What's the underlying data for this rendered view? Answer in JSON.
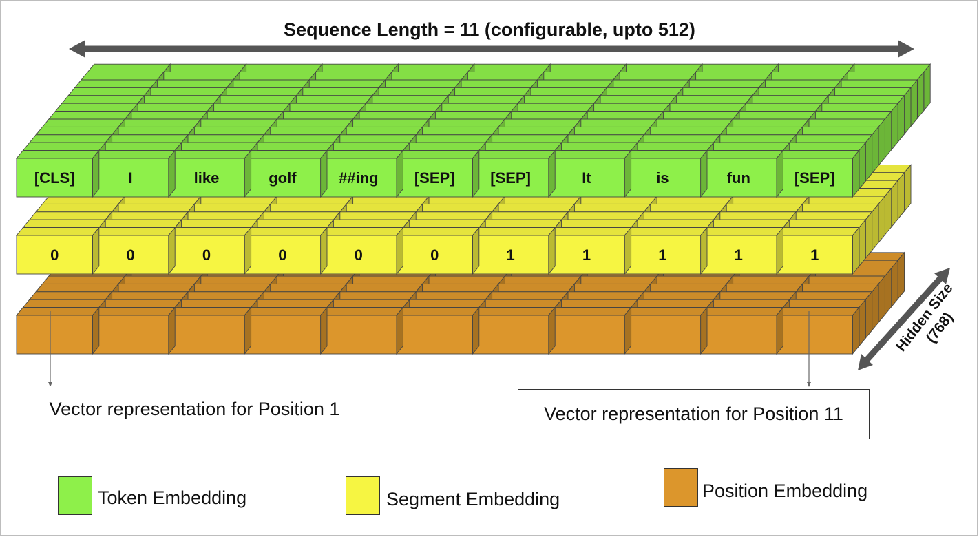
{
  "sequence_label": "Sequence Length = 11 (configurable, upto 512)",
  "hidden_size_label_1": "Hidden Size",
  "hidden_size_label_2": "(768)",
  "tokens": [
    "[CLS]",
    "I",
    "like",
    "golf",
    "##ing",
    "[SEP]",
    "[SEP]",
    "It",
    "is",
    "fun",
    "[SEP]"
  ],
  "segments": [
    "0",
    "0",
    "0",
    "0",
    "0",
    "0",
    "1",
    "1",
    "1",
    "1",
    "1"
  ],
  "callouts": {
    "position_1": "Vector representation for Position 1",
    "position_11": "Vector representation for Position 11"
  },
  "legend": {
    "token": "Token Embedding",
    "segment": "Segment Embedding",
    "position": "Position Embedding"
  },
  "colors": {
    "token": "#8ef04a",
    "segment": "#f6f542",
    "position": "#dc962c",
    "arrow": "#555555"
  }
}
